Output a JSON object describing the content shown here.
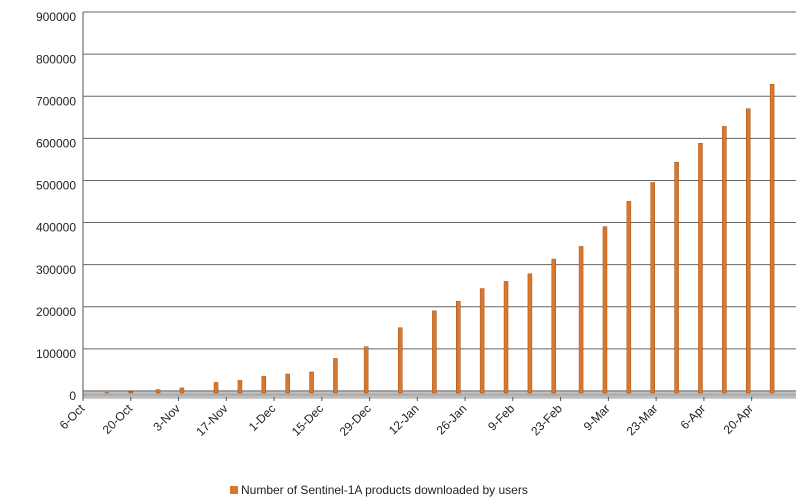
{
  "chart_data": {
    "type": "bar",
    "x": [
      7,
      14,
      22,
      29,
      39,
      46,
      53,
      60,
      67,
      74,
      83,
      93,
      103,
      110,
      117,
      124,
      131,
      138,
      146,
      153,
      160,
      167,
      174,
      181,
      188,
      195,
      202
    ],
    "series": [
      {
        "name": "Number of Sentinel-1A products downloaded by users",
        "color": "#d9782c",
        "values": [
          1000,
          3000,
          8000,
          12000,
          25000,
          30000,
          40000,
          45000,
          50000,
          82000,
          110000,
          155000,
          195000,
          218000,
          248000,
          265000,
          283000,
          318000,
          348000,
          395000,
          455000,
          500000,
          548000,
          593000,
          633000,
          675000,
          733000
        ]
      }
    ],
    "xlim": [
      0,
      209
    ],
    "xticks": [
      {
        "value": 0,
        "label": "6-Oct"
      },
      {
        "value": 14,
        "label": "20-Oct"
      },
      {
        "value": 28,
        "label": "3-Nov"
      },
      {
        "value": 42,
        "label": "17-Nov"
      },
      {
        "value": 56,
        "label": "1-Dec"
      },
      {
        "value": 70,
        "label": "15-Dec"
      },
      {
        "value": 84,
        "label": "29-Dec"
      },
      {
        "value": 98,
        "label": "12-Jan"
      },
      {
        "value": 112,
        "label": "26-Jan"
      },
      {
        "value": 126,
        "label": "9-Feb"
      },
      {
        "value": 140,
        "label": "23-Feb"
      },
      {
        "value": 154,
        "label": "9-Mar"
      },
      {
        "value": 168,
        "label": "23-Mar"
      },
      {
        "value": 182,
        "label": "6-Apr"
      },
      {
        "value": 196,
        "label": "20-Apr"
      }
    ],
    "ylim": [
      0,
      900000
    ],
    "yticks": [
      0,
      100000,
      200000,
      300000,
      400000,
      500000,
      600000,
      700000,
      800000,
      900000
    ],
    "grid": true,
    "legend": "bottom"
  }
}
